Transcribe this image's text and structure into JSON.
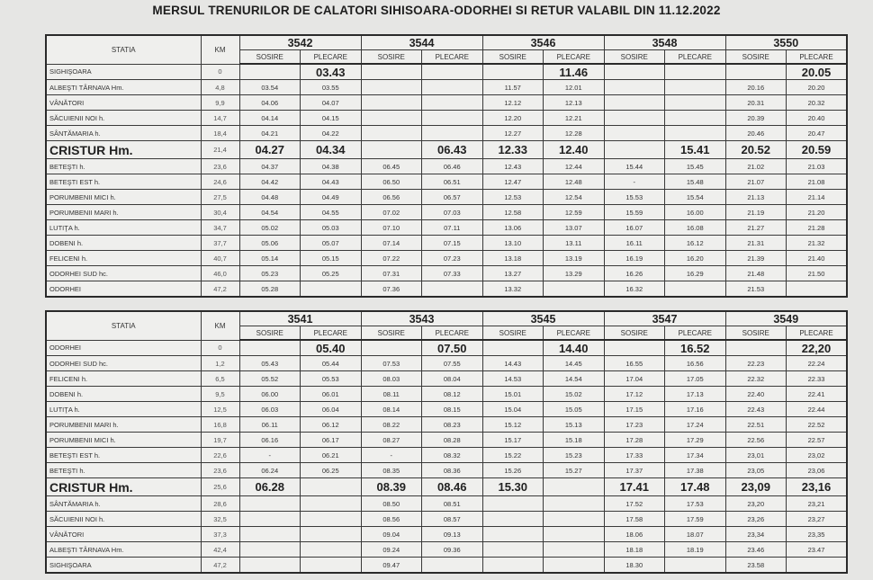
{
  "title": "MERSUL TRENURILOR DE CALATORI SIHISOARA-ODORHEI SI RETUR VALABIL DIN 11.12.2022",
  "headers": {
    "station": "STATIA",
    "km": "KM",
    "arrival": "SOSIRE",
    "departure": "PLECARE"
  },
  "tables": [
    {
      "trains": [
        "3542",
        "3544",
        "3546",
        "3548",
        "3550"
      ],
      "rows": [
        {
          "station": "SIGHIŞOARA",
          "km": "0",
          "times": [
            "",
            "03.43",
            "",
            "",
            "",
            "11.46",
            "",
            "",
            "",
            "20.05"
          ],
          "big": true
        },
        {
          "station": "ALBEŞTI TÂRNAVA Hm.",
          "km": "4,8",
          "times": [
            "03.54",
            "03.55",
            "",
            "",
            "11.57",
            "12.01",
            "",
            "",
            "20.16",
            "20.20"
          ]
        },
        {
          "station": "VÂNĂTORI",
          "km": "9,9",
          "times": [
            "04.06",
            "04.07",
            "",
            "",
            "12.12",
            "12.13",
            "",
            "",
            "20.31",
            "20.32"
          ]
        },
        {
          "station": "SĂCUIENII NOI h.",
          "km": "14,7",
          "times": [
            "04.14",
            "04.15",
            "",
            "",
            "12.20",
            "12.21",
            "",
            "",
            "20.39",
            "20.40"
          ]
        },
        {
          "station": "SÂNTĂMARIA h.",
          "km": "18,4",
          "times": [
            "04.21",
            "04.22",
            "",
            "",
            "12.27",
            "12.28",
            "",
            "",
            "20.46",
            "20.47"
          ]
        },
        {
          "station": "CRISTUR Hm.",
          "km": "21,4",
          "times": [
            "04.27",
            "04.34",
            "",
            "06.43",
            "12.33",
            "12.40",
            "",
            "15.41",
            "20.52",
            "20.59"
          ],
          "big": true,
          "bigStation": true
        },
        {
          "station": "BETEŞTI h.",
          "km": "23,6",
          "times": [
            "04.37",
            "04.38",
            "06.45",
            "06.46",
            "12.43",
            "12.44",
            "15.44",
            "15.45",
            "21.02",
            "21.03"
          ]
        },
        {
          "station": "BETEŞTI EST h.",
          "km": "24,6",
          "times": [
            "04.42",
            "04.43",
            "06.50",
            "06.51",
            "12.47",
            "12.48",
            "-",
            "15.48",
            "21.07",
            "21.08"
          ]
        },
        {
          "station": "PORUMBENII MICI h.",
          "km": "27,5",
          "times": [
            "04.48",
            "04.49",
            "06.56",
            "06.57",
            "12.53",
            "12.54",
            "15.53",
            "15.54",
            "21.13",
            "21.14"
          ]
        },
        {
          "station": "PORUMBENII MARI h.",
          "km": "30,4",
          "times": [
            "04.54",
            "04.55",
            "07.02",
            "07.03",
            "12.58",
            "12.59",
            "15.59",
            "16.00",
            "21.19",
            "21.20"
          ]
        },
        {
          "station": "LUTIŢA h.",
          "km": "34,7",
          "times": [
            "05.02",
            "05.03",
            "07.10",
            "07.11",
            "13.06",
            "13.07",
            "16.07",
            "16.08",
            "21.27",
            "21.28"
          ]
        },
        {
          "station": "DOBENI h.",
          "km": "37,7",
          "times": [
            "05.06",
            "05.07",
            "07.14",
            "07.15",
            "13.10",
            "13.11",
            "16.11",
            "16.12",
            "21.31",
            "21.32"
          ]
        },
        {
          "station": "FELICENI h.",
          "km": "40,7",
          "times": [
            "05.14",
            "05.15",
            "07.22",
            "07.23",
            "13.18",
            "13.19",
            "16.19",
            "16.20",
            "21.39",
            "21.40"
          ]
        },
        {
          "station": "ODORHEI SUD hc.",
          "km": "46,0",
          "times": [
            "05.23",
            "05.25",
            "07.31",
            "07.33",
            "13.27",
            "13.29",
            "16.26",
            "16.29",
            "21.48",
            "21.50"
          ]
        },
        {
          "station": "ODORHEI",
          "km": "47,2",
          "times": [
            "05.28",
            "",
            "07.36",
            "",
            "13.32",
            "",
            "16.32",
            "",
            "21.53",
            ""
          ]
        }
      ]
    },
    {
      "trains": [
        "3541",
        "3543",
        "3545",
        "3547",
        "3549"
      ],
      "rows": [
        {
          "station": "ODORHEI",
          "km": "0",
          "times": [
            "",
            "05.40",
            "",
            "07.50",
            "",
            "14.40",
            "",
            "16.52",
            "",
            "22,20"
          ],
          "big": true
        },
        {
          "station": "ODORHEI SUD hc.",
          "km": "1,2",
          "times": [
            "05.43",
            "05.44",
            "07.53",
            "07.55",
            "14.43",
            "14.45",
            "16.55",
            "16.56",
            "22.23",
            "22.24"
          ]
        },
        {
          "station": "FELICENI h.",
          "km": "6,5",
          "times": [
            "05.52",
            "05.53",
            "08.03",
            "08.04",
            "14.53",
            "14.54",
            "17.04",
            "17.05",
            "22.32",
            "22.33"
          ]
        },
        {
          "station": "DOBENI h.",
          "km": "9,5",
          "times": [
            "06.00",
            "06.01",
            "08.11",
            "08.12",
            "15.01",
            "15.02",
            "17.12",
            "17.13",
            "22.40",
            "22.41"
          ]
        },
        {
          "station": "LUTIŢA h.",
          "km": "12,5",
          "times": [
            "06.03",
            "06.04",
            "08.14",
            "08.15",
            "15.04",
            "15.05",
            "17.15",
            "17.16",
            "22.43",
            "22.44"
          ]
        },
        {
          "station": "PORUMBENII MARI h.",
          "km": "16,8",
          "times": [
            "06.11",
            "06.12",
            "08.22",
            "08.23",
            "15.12",
            "15.13",
            "17.23",
            "17.24",
            "22.51",
            "22.52"
          ]
        },
        {
          "station": "PORUMBENII MICI h.",
          "km": "19,7",
          "times": [
            "06.16",
            "06.17",
            "08.27",
            "08.28",
            "15.17",
            "15.18",
            "17.28",
            "17.29",
            "22.56",
            "22.57"
          ]
        },
        {
          "station": "BETEŞTI EST h.",
          "km": "22,6",
          "times": [
            "-",
            "06.21",
            "-",
            "08.32",
            "15.22",
            "15.23",
            "17.33",
            "17.34",
            "23,01",
            "23,02"
          ]
        },
        {
          "station": "BETEŞTI h.",
          "km": "23,6",
          "times": [
            "06.24",
            "06.25",
            "08.35",
            "08.36",
            "15.26",
            "15.27",
            "17.37",
            "17.38",
            "23,05",
            "23,06"
          ]
        },
        {
          "station": "CRISTUR Hm.",
          "km": "25,6",
          "times": [
            "06.28",
            "",
            "08.39",
            "08.46",
            "15.30",
            "",
            "17.41",
            "17.48",
            "23,09",
            "23,16"
          ],
          "big": true,
          "bigStation": true
        },
        {
          "station": "SÂNTĂMARIA h.",
          "km": "28,6",
          "times": [
            "",
            "",
            "08.50",
            "08.51",
            "",
            "",
            "17.52",
            "17.53",
            "23,20",
            "23,21"
          ]
        },
        {
          "station": "SĂCUIENII NOI h.",
          "km": "32,5",
          "times": [
            "",
            "",
            "08.56",
            "08.57",
            "",
            "",
            "17.58",
            "17.59",
            "23,26",
            "23,27"
          ]
        },
        {
          "station": "VÂNĂTORI",
          "km": "37,3",
          "times": [
            "",
            "",
            "09.04",
            "09.13",
            "",
            "",
            "18.06",
            "18.07",
            "23,34",
            "23,35"
          ]
        },
        {
          "station": "ALBEŞTI TÂRNAVA Hm.",
          "km": "42,4",
          "times": [
            "",
            "",
            "09.24",
            "09.36",
            "",
            "",
            "18.18",
            "18.19",
            "23.46",
            "23.47"
          ]
        },
        {
          "station": "SIGHIŞOARA",
          "km": "47,2",
          "times": [
            "",
            "",
            "09.47",
            "",
            "",
            "",
            "18.30",
            "",
            "23.58",
            ""
          ]
        }
      ]
    }
  ]
}
